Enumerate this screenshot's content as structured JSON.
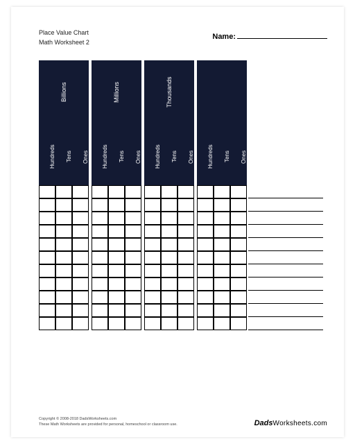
{
  "header": {
    "title_line1": "Place Value Chart",
    "title_line2": "Math Worksheet 2",
    "name_label": "Name:"
  },
  "chart": {
    "header_bg": "#131a33",
    "sub_labels": [
      "Hundreds",
      "Tens",
      "Ones"
    ],
    "groups": [
      {
        "period": "Billions",
        "show_period": true
      },
      {
        "period": "Millions",
        "show_period": true
      },
      {
        "period": "Thousands",
        "show_period": true
      },
      {
        "period": "",
        "show_period": false
      }
    ],
    "rows": 11,
    "line_rows": 11
  },
  "footer": {
    "copyright": "Copyright © 2008-2018 DadsWorksheets.com",
    "tagline": "These Math Worksheets are provided for personal, homeschool or classroom use.",
    "logo_script": "Dads",
    "logo_rest": "Worksheets.com"
  }
}
